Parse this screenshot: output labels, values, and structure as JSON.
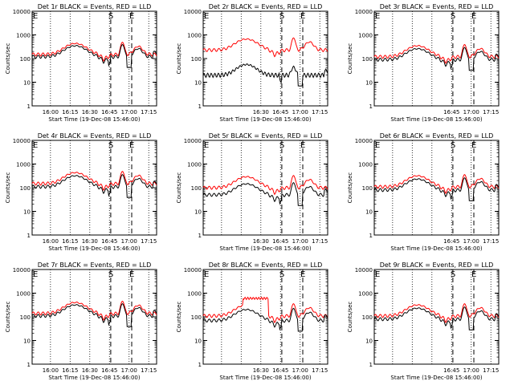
{
  "figure": {
    "xlabel": "Start Time (19-Dec-08 15:46:00)",
    "ylabel": "Counts/sec",
    "colors": {
      "events": "#000000",
      "lld": "#ff0000",
      "axis": "#000000",
      "background": "#ffffff"
    },
    "yscale": "log",
    "ylim": [
      1,
      10000
    ],
    "yticks": [
      {
        "v": 1,
        "label": "1"
      },
      {
        "v": 10,
        "label": "10"
      },
      {
        "v": 100,
        "label": "100"
      },
      {
        "v": 1000,
        "label": "1000"
      },
      {
        "v": 10000,
        "label": "10000"
      }
    ],
    "xlim_minutes_after_1546": [
      0,
      95
    ],
    "xticks": [
      {
        "t": 14,
        "label": "16:00"
      },
      {
        "t": 29,
        "label": "16:15"
      },
      {
        "t": 44,
        "label": "16:30"
      },
      {
        "t": 59,
        "label": "16:45"
      },
      {
        "t": 74,
        "label": "17:00"
      },
      {
        "t": 89,
        "label": "17:15"
      }
    ],
    "markers": [
      {
        "label": "E",
        "t": 0,
        "style": "dotted"
      },
      {
        "label": "S",
        "t": 60,
        "style": "dashed"
      },
      {
        "label": "E",
        "t": 76,
        "style": "dashed"
      }
    ]
  },
  "chart_data": [
    {
      "type": "line",
      "title": "Det 1r BLACK = Events, RED = LLD",
      "xticks_shown": [
        "16:00",
        "16:15",
        "16:30",
        "16:45",
        "17:00",
        "17:15"
      ],
      "black_base": 120,
      "red_base": 150,
      "profile": "normal"
    },
    {
      "type": "line",
      "title": "Det 2r BLACK = Events, RED = LLD",
      "xticks_shown": [
        "16:30",
        "16:45",
        "17:00",
        "17:15"
      ],
      "black_base": 20,
      "red_base": 230,
      "profile": "det2"
    },
    {
      "type": "line",
      "title": "Det 3r BLACK = Events, RED = LLD",
      "xticks_shown": [
        "16:45",
        "17:00",
        "17:15"
      ],
      "black_base": 90,
      "red_base": 120,
      "profile": "normal"
    },
    {
      "type": "line",
      "title": "Det 4r BLACK = Events, RED = LLD",
      "xticks_shown": [
        "16:00",
        "16:15",
        "16:30",
        "16:45",
        "17:00",
        "17:15"
      ],
      "black_base": 110,
      "red_base": 150,
      "profile": "normal"
    },
    {
      "type": "line",
      "title": "Det 5r BLACK = Events, RED = LLD",
      "xticks_shown": [
        "16:30",
        "16:45",
        "17:00",
        "17:15"
      ],
      "black_base": 50,
      "red_base": 100,
      "profile": "normal"
    },
    {
      "type": "line",
      "title": "Det 6r BLACK = Events, RED = LLD",
      "xticks_shown": [
        "16:45",
        "17:00",
        "17:15"
      ],
      "black_base": 80,
      "red_base": 110,
      "profile": "normal"
    },
    {
      "type": "line",
      "title": "Det 7r BLACK = Events, RED = LLD",
      "xticks_shown": [
        "16:00",
        "16:15",
        "16:30",
        "16:45",
        "17:00",
        "17:15"
      ],
      "black_base": 110,
      "red_base": 140,
      "profile": "normal"
    },
    {
      "type": "line",
      "title": "Det 8r BLACK = Events, RED = LLD",
      "xticks_shown": [
        "16:30",
        "16:45",
        "17:00",
        "17:15"
      ],
      "black_base": 70,
      "red_base": 110,
      "profile": "det8"
    },
    {
      "type": "line",
      "title": "Det 9r BLACK = Events, RED = LLD",
      "xticks_shown": [
        "16:45",
        "17:00",
        "17:15"
      ],
      "black_base": 80,
      "red_base": 110,
      "profile": "normal"
    }
  ]
}
